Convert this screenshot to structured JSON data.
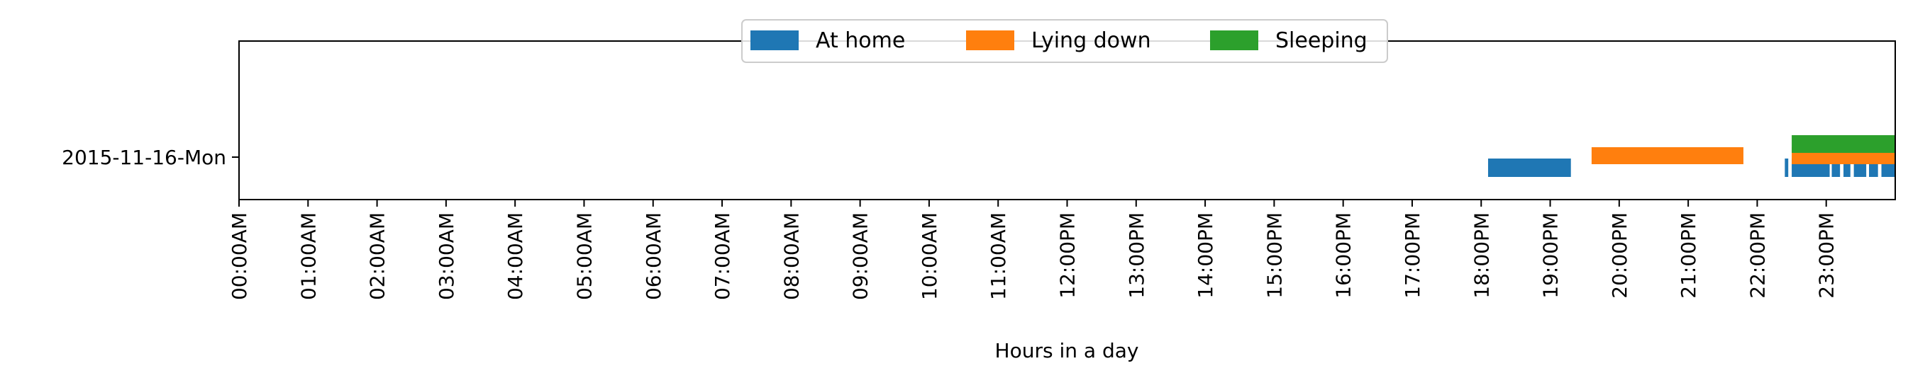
{
  "chart_data": {
    "type": "timeline",
    "title": "",
    "xlabel": "Hours in a day",
    "ylabel": "",
    "xlim": [
      0,
      24
    ],
    "y_categories": [
      "2015-11-16-Mon"
    ],
    "x_tick_labels": [
      "00:00AM",
      "01:00AM",
      "02:00AM",
      "03:00AM",
      "04:00AM",
      "05:00AM",
      "06:00AM",
      "07:00AM",
      "08:00AM",
      "09:00AM",
      "10:00AM",
      "11:00AM",
      "12:00PM",
      "13:00PM",
      "14:00PM",
      "15:00PM",
      "16:00PM",
      "17:00PM",
      "18:00PM",
      "19:00PM",
      "20:00PM",
      "21:00PM",
      "22:00PM",
      "23:00PM"
    ],
    "legend": {
      "placement": "top-center"
    },
    "grid": false,
    "series": [
      {
        "name": "At home",
        "color": "#1f77b4",
        "intervals": [
          [
            18.1,
            19.3
          ],
          [
            22.4,
            22.45
          ],
          [
            22.5,
            23.05
          ],
          [
            23.08,
            23.2
          ],
          [
            23.25,
            23.35
          ],
          [
            23.4,
            23.58
          ],
          [
            23.62,
            23.75
          ],
          [
            23.8,
            24.0
          ]
        ]
      },
      {
        "name": "Lying down",
        "color": "#ff7f0e",
        "intervals": [
          [
            19.6,
            21.8
          ],
          [
            22.5,
            24.0
          ]
        ]
      },
      {
        "name": "Sleeping",
        "color": "#2ca02c",
        "intervals": [
          [
            22.5,
            24.0
          ]
        ]
      }
    ]
  }
}
